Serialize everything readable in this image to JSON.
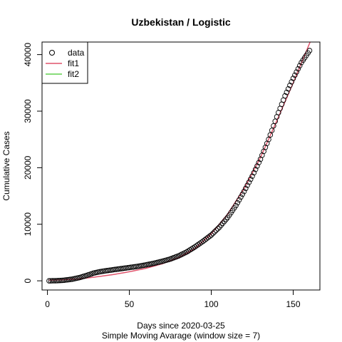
{
  "chart_data": {
    "type": "scatter",
    "title": "Uzbekistan / Logistic",
    "xlabel": "Days since 2020-03-25",
    "subtitle": "Simple Moving Avarage (window size = 7)",
    "ylabel": "Cumulative Cases",
    "xlim": [
      -3.3,
      166.3
    ],
    "ylim": [
      -1624,
      42220
    ],
    "x_ticks": [
      0,
      50,
      100,
      150
    ],
    "y_ticks": [
      0,
      10000,
      20000,
      30000,
      40000
    ],
    "grid": false,
    "legend_position": "top-left",
    "legend": [
      {
        "label": "data",
        "symbol": "open-circle",
        "color": "#000000"
      },
      {
        "label": "fit1",
        "symbol": "line",
        "color": "#DF536B"
      },
      {
        "label": "fit2",
        "symbol": "line",
        "color": "#61D04F"
      }
    ],
    "series": [
      {
        "name": "data",
        "kind": "points",
        "color": "#000000",
        "x_start": 1,
        "x_end": 160,
        "anchors": [
          [
            1,
            0
          ],
          [
            5,
            20
          ],
          [
            10,
            100
          ],
          [
            15,
            280
          ],
          [
            20,
            600
          ],
          [
            25,
            1050
          ],
          [
            28,
            1350
          ],
          [
            32,
            1600
          ],
          [
            35,
            1750
          ],
          [
            40,
            1950
          ],
          [
            45,
            2150
          ],
          [
            50,
            2350
          ],
          [
            55,
            2550
          ],
          [
            60,
            2800
          ],
          [
            65,
            3100
          ],
          [
            70,
            3450
          ],
          [
            75,
            3850
          ],
          [
            80,
            4400
          ],
          [
            85,
            5100
          ],
          [
            90,
            6000
          ],
          [
            95,
            7000
          ],
          [
            100,
            8100
          ],
          [
            105,
            9500
          ],
          [
            110,
            11200
          ],
          [
            115,
            13300
          ],
          [
            120,
            15800
          ],
          [
            125,
            18500
          ],
          [
            130,
            21500
          ],
          [
            135,
            25000
          ],
          [
            140,
            29000
          ],
          [
            145,
            32700
          ],
          [
            150,
            35800
          ],
          [
            155,
            38600
          ],
          [
            160,
            40700
          ]
        ]
      },
      {
        "name": "fit1",
        "kind": "line",
        "color": "#DF536B",
        "x_start": 1,
        "x_end": 161,
        "anchors": [
          [
            1,
            100
          ],
          [
            10,
            200
          ],
          [
            20,
            350
          ],
          [
            30,
            700
          ],
          [
            40,
            1100
          ],
          [
            50,
            1600
          ],
          [
            60,
            2200
          ],
          [
            70,
            3000
          ],
          [
            80,
            4100
          ],
          [
            90,
            5700
          ],
          [
            100,
            8300
          ],
          [
            110,
            11800
          ],
          [
            120,
            16300
          ],
          [
            130,
            21800
          ],
          [
            140,
            28300
          ],
          [
            150,
            35000
          ],
          [
            160,
            42000
          ],
          [
            161,
            42700
          ]
        ]
      }
    ]
  }
}
